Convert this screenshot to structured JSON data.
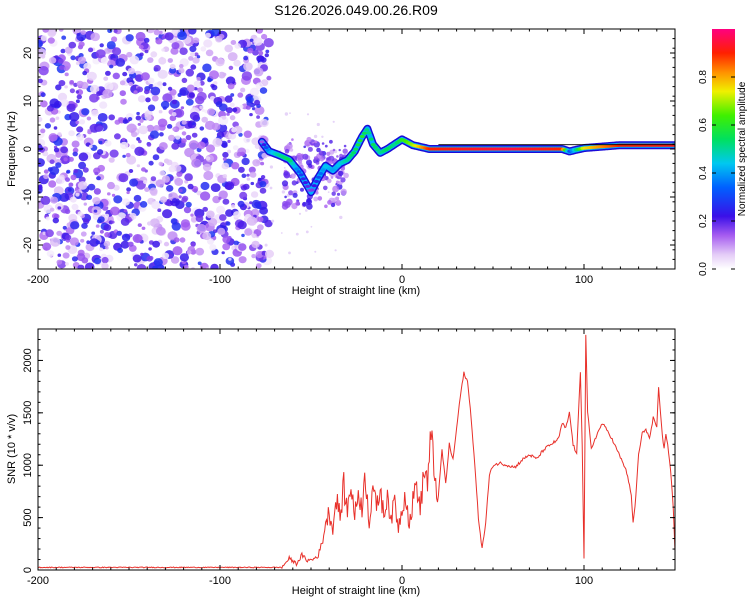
{
  "title": "S126.2026.049.00.26.R09",
  "colors": {
    "snr_line": "#e8302a",
    "axis": "#000000"
  },
  "chart_data": [
    {
      "type": "heatmap",
      "title": "S126.2026.049.00.26.R09",
      "xlabel": "Height of straight line (km)",
      "ylabel": "Frequency (Hz)",
      "xlim": [
        -200,
        150
      ],
      "ylim": [
        -25,
        25
      ],
      "x_ticks": [
        -200,
        -100,
        0,
        100
      ],
      "y_ticks": [
        -20,
        -10,
        0,
        10,
        20
      ],
      "noise_region_x": [
        -200,
        -76
      ],
      "ridge": {
        "x": [
          -77,
          -73,
          -68,
          -62,
          -56,
          -50,
          -46,
          -42,
          -38,
          -34,
          -30,
          -26,
          -22,
          -19,
          -16,
          -12,
          -8,
          -4,
          0,
          6,
          15,
          30,
          60,
          88,
          92,
          100,
          120,
          150
        ],
        "y": [
          1.5,
          -0.5,
          -1.2,
          -2.2,
          -5,
          -9,
          -6,
          -3.5,
          -4.5,
          -3,
          -2.3,
          -0.5,
          2.5,
          4.2,
          1,
          -0.8,
          0,
          1,
          2,
          0.8,
          0,
          0,
          0,
          0,
          -0.5,
          0.2,
          0.8,
          0.8
        ],
        "amplitude": [
          0.15,
          0.4,
          0.5,
          0.55,
          0.3,
          0.15,
          0.3,
          0.45,
          0.4,
          0.45,
          0.5,
          0.55,
          0.6,
          0.5,
          0.55,
          0.5,
          0.55,
          0.5,
          0.6,
          0.7,
          0.9,
          0.92,
          0.95,
          0.9,
          0.3,
          0.75,
          0.9,
          0.92
        ]
      },
      "colorbar": {
        "label": "Normalized spectral amplitude",
        "range": [
          0,
          1
        ],
        "ticks": [
          "0.0",
          "0.2",
          "0.4",
          "0.6",
          "0.8"
        ]
      }
    },
    {
      "type": "line",
      "xlabel": "Height of straight line (km)",
      "ylabel": "SNR (10 * v/v)",
      "xlim": [
        -200,
        150
      ],
      "ylim": [
        0,
        2300
      ],
      "x_ticks": [
        -200,
        -100,
        0,
        100
      ],
      "y_ticks": [
        0,
        500,
        1000,
        1500,
        2000
      ],
      "series": [
        {
          "name": "SNR",
          "x": [
            -200,
            -66,
            -62,
            -58,
            -55,
            -52,
            -49,
            -46,
            -44,
            -42,
            -40,
            -38,
            -36,
            -34,
            -32,
            -30,
            -28,
            -26,
            -24,
            -22,
            -20,
            -18,
            -16,
            -14,
            -12,
            -10,
            -8,
            -6,
            -4,
            -2,
            0,
            2,
            4,
            6,
            8,
            10,
            12,
            14,
            16,
            18,
            20,
            22,
            24,
            26,
            28,
            30,
            32,
            34,
            36,
            38,
            40,
            42,
            44,
            46,
            48,
            50,
            54,
            58,
            62,
            66,
            70,
            74,
            78,
            82,
            86,
            88,
            90,
            92,
            94,
            96,
            97,
            98,
            99,
            100,
            101,
            102,
            104,
            106,
            110,
            114,
            118,
            122,
            124,
            126,
            127,
            128,
            130,
            132,
            134,
            136,
            138,
            140,
            141,
            142,
            143,
            144,
            145,
            146,
            147,
            148,
            149,
            150
          ],
          "values": [
            25,
            25,
            110,
            60,
            140,
            90,
            100,
            140,
            250,
            450,
            550,
            400,
            700,
            500,
            800,
            550,
            850,
            500,
            750,
            600,
            900,
            450,
            850,
            550,
            800,
            500,
            750,
            450,
            680,
            400,
            600,
            750,
            420,
            650,
            850,
            550,
            950,
            850,
            1250,
            900,
            700,
            1150,
            820,
            1200,
            1050,
            1350,
            1650,
            1880,
            1800,
            1450,
            1000,
            500,
            200,
            450,
            900,
            1000,
            1020,
            1000,
            980,
            1050,
            1100,
            1060,
            1150,
            1200,
            1250,
            1400,
            1350,
            1500,
            1200,
            1100,
            1500,
            1900,
            1200,
            100,
            2250,
            1500,
            1150,
            1250,
            1400,
            1300,
            1150,
            1000,
            900,
            700,
            450,
            600,
            1100,
            1300,
            1350,
            1250,
            1450,
            1350,
            1750,
            1500,
            1300,
            1150,
            1300,
            1200,
            1050,
            850,
            600,
            180
          ]
        }
      ]
    }
  ]
}
